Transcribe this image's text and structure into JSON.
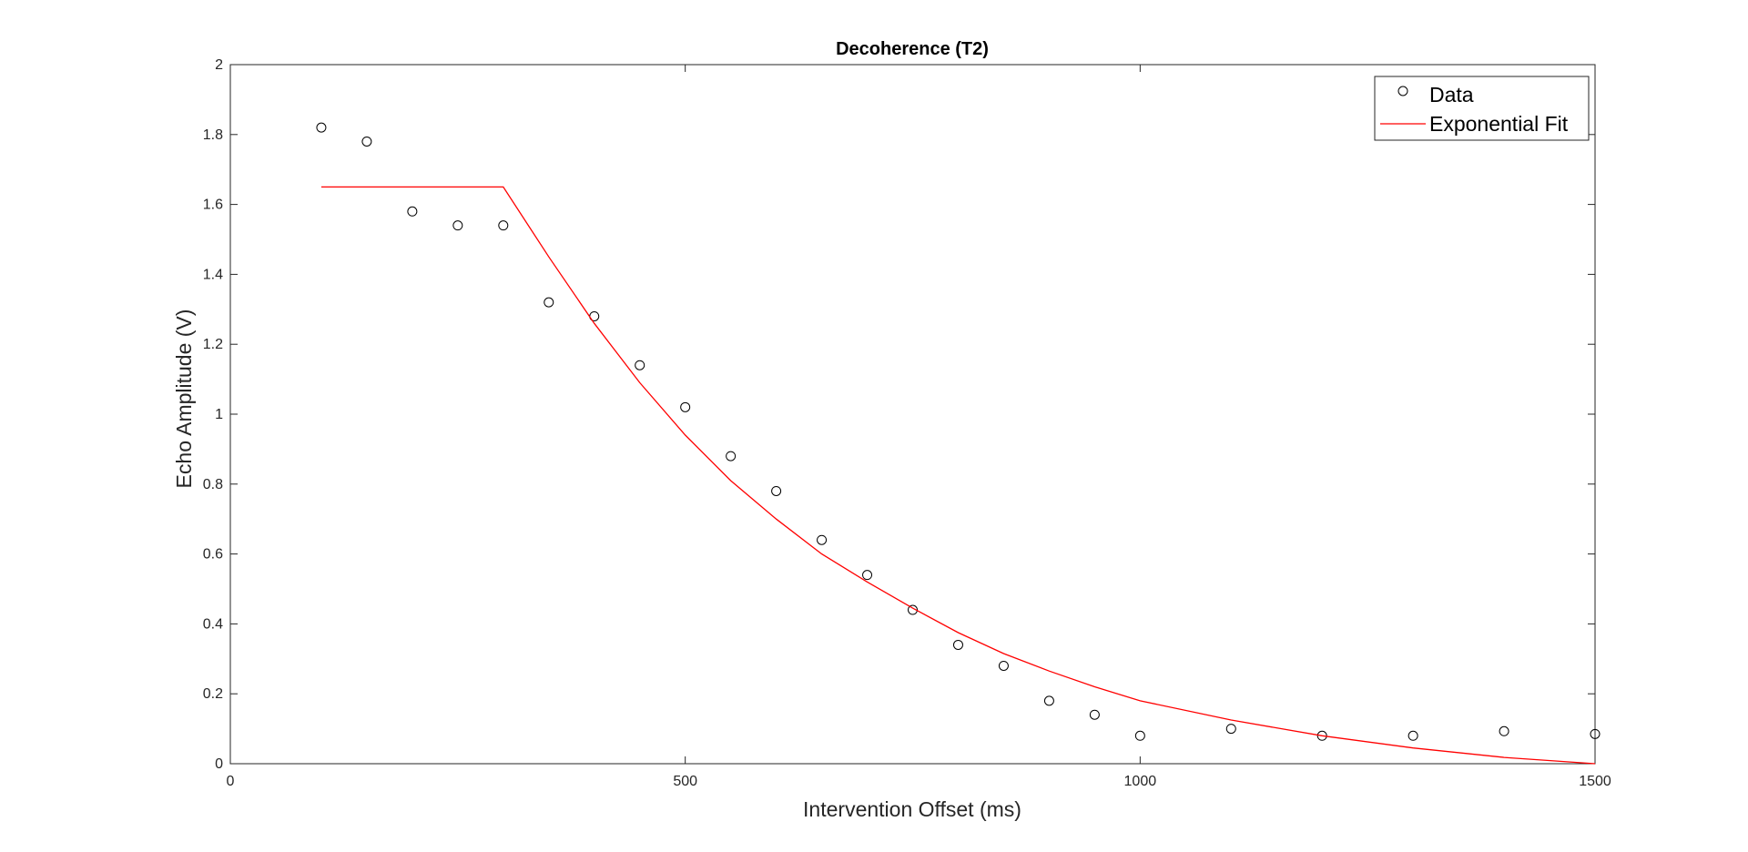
{
  "chart_data": {
    "type": "scatter",
    "title": "Decoherence (T2)",
    "xlabel": "Intervention Offset (ms)",
    "ylabel": "Echo Amplitude (V)",
    "xlim": [
      0,
      1500
    ],
    "ylim": [
      0,
      2
    ],
    "xticks": [
      0,
      500,
      1000,
      1500
    ],
    "yticks": [
      0,
      0.2,
      0.4,
      0.6,
      0.8,
      1,
      1.2,
      1.4,
      1.6,
      1.8,
      2
    ],
    "xtick_labels": [
      "0",
      "500",
      "1000",
      "1500"
    ],
    "ytick_labels": [
      "0",
      "0.2",
      "0.4",
      "0.6",
      "0.8",
      "1",
      "1.2",
      "1.4",
      "1.6",
      "1.8",
      "2"
    ],
    "grid": false,
    "legend_position": "top-right",
    "series": [
      {
        "name": "Data",
        "style": "markers",
        "marker": "circle",
        "color": "#000000",
        "x": [
          100,
          150,
          200,
          250,
          300,
          350,
          400,
          450,
          500,
          550,
          600,
          650,
          700,
          750,
          800,
          850,
          900,
          950,
          1000,
          1100,
          1200,
          1300,
          1400,
          1500
        ],
        "y": [
          1.82,
          1.78,
          1.58,
          1.54,
          1.54,
          1.32,
          1.28,
          1.14,
          1.02,
          0.88,
          0.78,
          0.64,
          0.54,
          0.44,
          0.34,
          0.28,
          0.18,
          0.14,
          0.08,
          0.1,
          0.08,
          0.08,
          0.093,
          0.085
        ]
      },
      {
        "name": "Exponential Fit",
        "style": "line",
        "color": "#ff0000",
        "x": [
          100,
          300,
          350,
          400,
          450,
          500,
          550,
          600,
          650,
          700,
          750,
          800,
          850,
          900,
          950,
          1000,
          1100,
          1200,
          1300,
          1400,
          1500
        ],
        "y": [
          1.65,
          1.65,
          1.45,
          1.26,
          1.09,
          0.94,
          0.81,
          0.7,
          0.6,
          0.52,
          0.445,
          0.375,
          0.315,
          0.265,
          0.22,
          0.18,
          0.125,
          0.08,
          0.045,
          0.018,
          0.0
        ]
      }
    ]
  }
}
